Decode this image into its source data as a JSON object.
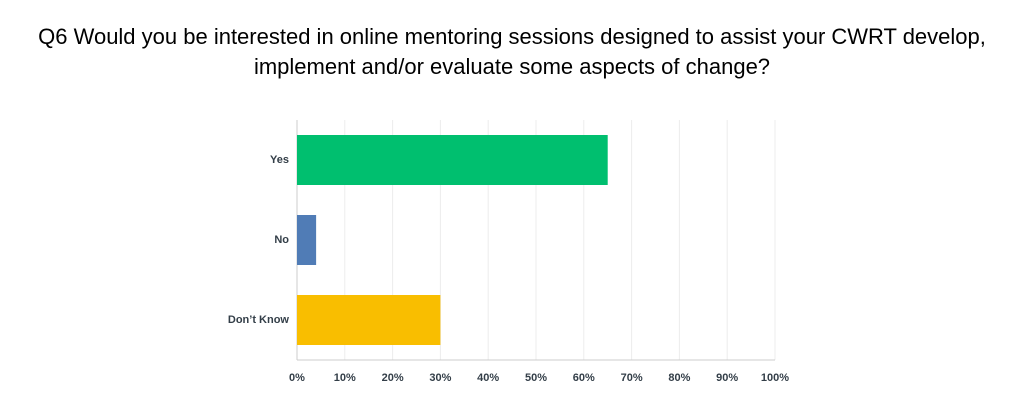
{
  "chart_data": {
    "type": "bar",
    "title": "Q6 Would you be interested in online mentoring sessions designed to assist your CWRT develop, implement and/or evaluate some aspects of change?",
    "categories": [
      "Yes",
      "No",
      "Don’t Know"
    ],
    "values": [
      65,
      4,
      30
    ],
    "colors": [
      "#00bf6f",
      "#507cb6",
      "#f9be00"
    ],
    "xlim": [
      0,
      100
    ],
    "xticks": [
      {
        "value": 0,
        "label": "0%"
      },
      {
        "value": 10,
        "label": "10%"
      },
      {
        "value": 20,
        "label": "20%"
      },
      {
        "value": 30,
        "label": "30%"
      },
      {
        "value": 40,
        "label": "40%"
      },
      {
        "value": 50,
        "label": "50%"
      },
      {
        "value": 60,
        "label": "60%"
      },
      {
        "value": 70,
        "label": "70%"
      },
      {
        "value": 80,
        "label": "80%"
      },
      {
        "value": 90,
        "label": "90%"
      },
      {
        "value": 100,
        "label": "100%"
      }
    ],
    "grid": true
  }
}
